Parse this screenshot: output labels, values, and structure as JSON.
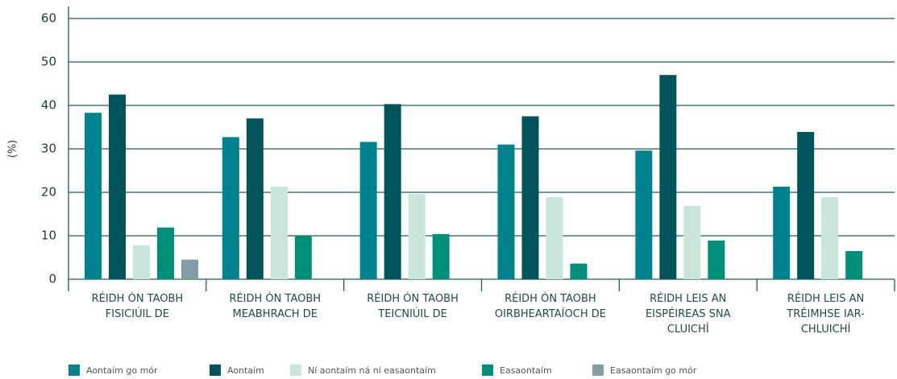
{
  "chart_data": {
    "type": "bar",
    "y_label": "(%)",
    "categories": [
      "RÉIDH ÓN TAOBH FISICIÚIL DE",
      "RÉIDH ÓN TAOBH MEABHRACH DE",
      "RÉIDH ÓN TAOBH TEICNIÚIL DE",
      "RÉIDH ÓN TAOBH OIRBHEARTAÍOCH DE",
      "RÉIDH LEIS AN EISPÉIREAS SNA CLUICHÍ",
      "RÉIDH LEIS AN TRÉIMHSE IAR-CHLUICHÍ"
    ],
    "series": [
      {
        "name": "Aontaím go mór",
        "color": "#00828f",
        "values": [
          38.3,
          32.7,
          31.6,
          31,
          29.6,
          21.3
        ]
      },
      {
        "name": "Aontaím",
        "color": "#01545c",
        "values": [
          42.5,
          37,
          40.3,
          37.5,
          47,
          33.9
        ]
      },
      {
        "name": "Ní aontaím ná ní easaontaím",
        "color": "#c8e6da",
        "values": [
          7.8,
          21.3,
          19.6,
          18.9,
          16.9,
          18.9
        ]
      },
      {
        "name": "Easaontaím",
        "color": "#00907a",
        "values": [
          11.9,
          10,
          10.4,
          3.6,
          8.9,
          6.5
        ]
      },
      {
        "name": "Easaontaím go mór",
        "color": "#7f9ea5",
        "values": [
          4.5,
          null,
          null,
          null,
          null,
          null
        ]
      }
    ],
    "ylim": [
      0,
      60
    ],
    "yticks": [
      0,
      10,
      20,
      30,
      40,
      50,
      60
    ],
    "grid": true,
    "legend": "bottom"
  }
}
